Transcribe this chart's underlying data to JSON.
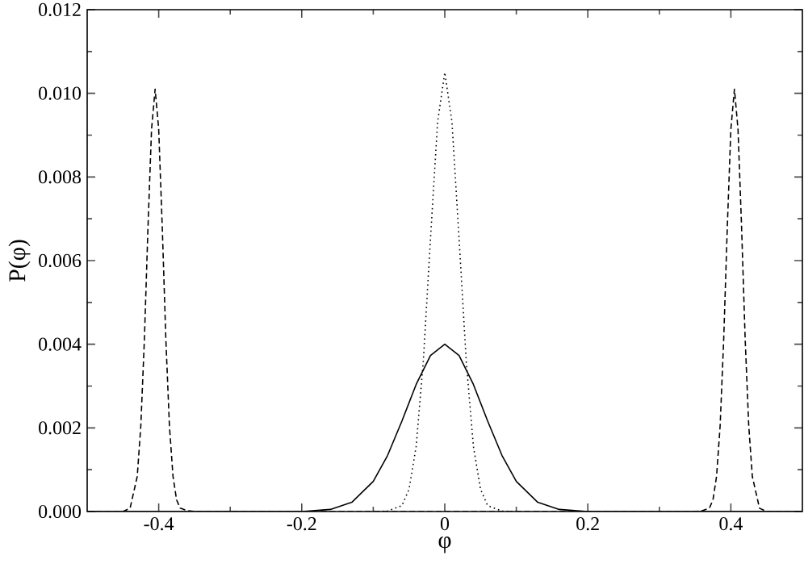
{
  "chart_data": {
    "type": "line",
    "xlabel": "φ",
    "ylabel": "P(φ)",
    "xlim": [
      -0.5,
      0.5
    ],
    "xticks": [
      -0.4,
      -0.2,
      0,
      0.2,
      0.4
    ],
    "ylim": [
      0,
      0.012
    ],
    "yticks": [
      {
        "value": 0,
        "label": "0.000"
      },
      {
        "value": 0.002,
        "label": "0.002"
      },
      {
        "value": 0.004,
        "label": "0.004"
      },
      {
        "value": 0.006,
        "label": "0.006"
      },
      {
        "value": 0.008,
        "label": "0.008"
      },
      {
        "value": 0.01,
        "label": "0.010"
      },
      {
        "value": 0.012,
        "label": "0.012"
      }
    ],
    "grid": false,
    "legend": false,
    "marker": "none",
    "series": [
      {
        "color": "#000000",
        "line_style": "solid",
        "x": [
          -0.5,
          -0.25,
          -0.2,
          -0.16,
          -0.13,
          -0.1,
          -0.08,
          -0.06,
          -0.04,
          -0.02,
          0,
          0.02,
          0.04,
          0.06,
          0.08,
          0.1,
          0.13,
          0.16,
          0.2,
          0.25,
          0.5
        ],
        "values": [
          0,
          0,
          0,
          5e-05,
          0.00022,
          0.00072,
          0.00134,
          0.00216,
          0.00304,
          0.00373,
          0.004,
          0.00373,
          0.00304,
          0.00216,
          0.00134,
          0.00072,
          0.00022,
          5e-05,
          0,
          0,
          0
        ]
      },
      {
        "color": "#000000",
        "line_style": "dotted",
        "x": [
          -0.1,
          -0.08,
          -0.06,
          -0.05,
          -0.04,
          -0.03,
          -0.02,
          -0.01,
          0,
          0.01,
          0.02,
          0.03,
          0.04,
          0.05,
          0.06,
          0.08,
          0.1
        ],
        "values": [
          0,
          1e-05,
          0.00014,
          0.00053,
          0.00156,
          0.0036,
          0.00652,
          0.00932,
          0.0105,
          0.00932,
          0.00652,
          0.0036,
          0.00156,
          0.00053,
          0.00014,
          1e-05,
          0
        ]
      },
      {
        "color": "#000000",
        "line_style": "dashed",
        "x": [
          -0.5,
          -0.45,
          -0.44,
          -0.43,
          -0.425,
          -0.42,
          -0.415,
          -0.41,
          -0.405,
          -0.4,
          -0.395,
          -0.39,
          -0.385,
          -0.38,
          -0.375,
          -0.37,
          -0.36,
          -0.35,
          0.35,
          0.36,
          0.37,
          0.375,
          0.38,
          0.385,
          0.39,
          0.395,
          0.4,
          0.405,
          0.41,
          0.415,
          0.42,
          0.425,
          0.43,
          0.44,
          0.45,
          0.5
        ],
        "values": [
          0,
          0,
          8e-05,
          0.00084,
          0.00205,
          0.00412,
          0.00679,
          0.00914,
          0.0101,
          0.00914,
          0.00679,
          0.00412,
          0.00205,
          0.00084,
          0.00028,
          8e-05,
          2e-05,
          0,
          0,
          2e-05,
          8e-05,
          0.00028,
          0.00084,
          0.00205,
          0.00412,
          0.00679,
          0.00914,
          0.0101,
          0.00914,
          0.00679,
          0.00412,
          0.00205,
          0.00084,
          8e-05,
          0,
          0
        ]
      }
    ]
  }
}
